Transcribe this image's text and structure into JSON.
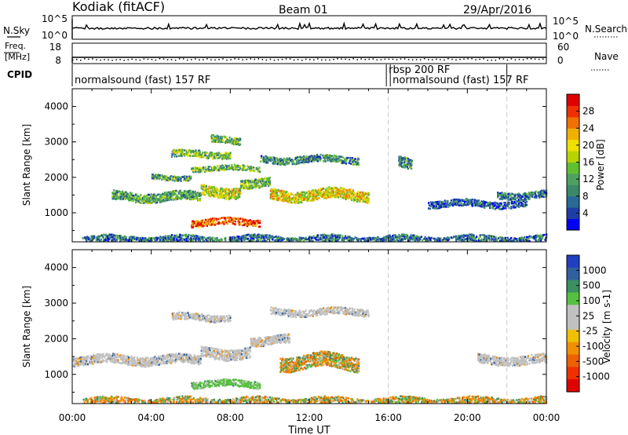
{
  "header": {
    "station": "Kodiak (fitACF)",
    "beam": "Beam 01",
    "date": "29/Apr/2016"
  },
  "strips": {
    "nsky_label": "N.Sky",
    "nsky_ticks": [
      "10^5",
      "10^0"
    ],
    "nsearch_label": "N.Search",
    "nsearch_ticks": [
      "10^5",
      "10^0"
    ],
    "freq_label_1": "Freq.",
    "freq_label_2": "[MHz]",
    "freq_ticks": [
      "18",
      "8"
    ],
    "nave_label": "Nave",
    "nave_ticks": [
      "60",
      "0"
    ],
    "cpid_label": "CPID",
    "cpid_segments": [
      {
        "label": "normalsound (fast) 157 RF",
        "start_hour": 0,
        "end_hour": 15.9
      },
      {
        "label": "rbsp 200 RF",
        "start_hour": 15.9,
        "end_hour": 16.1
      },
      {
        "label": "normalsound (fast) 157 RF",
        "start_hour": 16.1,
        "end_hour": 22
      }
    ]
  },
  "chart_data": [
    {
      "type": "heatmap",
      "title": "",
      "xlabel": "Time UT",
      "ylabel": "Slant Range [km]",
      "x_range_hours": [
        0,
        24
      ],
      "x_ticks": [
        "00:00",
        "04:00",
        "08:00",
        "12:00",
        "16:00",
        "20:00",
        "00:00"
      ],
      "ylim": [
        180,
        4500
      ],
      "y_ticks": [
        1000,
        2000,
        3000,
        4000
      ],
      "dashed_marker_hours": [
        16,
        22
      ],
      "colorbar": {
        "label": "Power [dB]",
        "ticks": [
          "4",
          "8",
          "12",
          "16",
          "20",
          "24",
          "28"
        ],
        "colors": [
          "#0000ff",
          "#1e3ea6",
          "#2a6a96",
          "#3a8a6a",
          "#4fa060",
          "#60c030",
          "#b8d400",
          "#f0e000",
          "#f0b000",
          "#f07000",
          "#f03000",
          "#e00000"
        ]
      },
      "features": [
        {
          "start_hour": 2.0,
          "end_hour": 6.5,
          "range_km": 1500,
          "width_km": 250,
          "level": 0.35
        },
        {
          "start_hour": 6.5,
          "end_hour": 8.5,
          "range_km": 1650,
          "width_km": 300,
          "level": 0.55
        },
        {
          "start_hour": 8.5,
          "end_hour": 10.0,
          "range_km": 1900,
          "width_km": 250,
          "level": 0.4
        },
        {
          "start_hour": 4.0,
          "end_hour": 6.0,
          "range_km": 2050,
          "width_km": 150,
          "level": 0.35
        },
        {
          "start_hour": 6.0,
          "end_hour": 9.5,
          "range_km": 2300,
          "width_km": 150,
          "level": 0.4
        },
        {
          "start_hour": 5.0,
          "end_hour": 8.0,
          "range_km": 2700,
          "width_km": 200,
          "level": 0.45
        },
        {
          "start_hour": 7.0,
          "end_hour": 8.5,
          "range_km": 3100,
          "width_km": 200,
          "level": 0.4
        },
        {
          "start_hour": 9.5,
          "end_hour": 14.5,
          "range_km": 2550,
          "width_km": 200,
          "level": 0.3
        },
        {
          "start_hour": 10.0,
          "end_hour": 15.0,
          "range_km": 1550,
          "width_km": 300,
          "level": 0.6
        },
        {
          "start_hour": 6.0,
          "end_hour": 9.5,
          "range_km": 780,
          "width_km": 200,
          "level": 0.85
        },
        {
          "start_hour": 16.5,
          "end_hour": 17.2,
          "range_km": 2450,
          "width_km": 300,
          "level": 0.3
        },
        {
          "start_hour": 18.0,
          "end_hour": 23.0,
          "range_km": 1300,
          "width_km": 200,
          "level": 0.2
        },
        {
          "start_hour": 21.5,
          "end_hour": 24.0,
          "range_km": 1550,
          "width_km": 200,
          "level": 0.25
        },
        {
          "start_hour": 0.5,
          "end_hour": 24.0,
          "range_km": 300,
          "width_km": 200,
          "level": 0.25
        }
      ]
    },
    {
      "type": "heatmap",
      "title": "",
      "xlabel": "Time UT",
      "ylabel": "Slant Range [km]",
      "x_range_hours": [
        0,
        24
      ],
      "x_ticks": [
        "00:00",
        "04:00",
        "08:00",
        "12:00",
        "16:00",
        "20:00",
        "00:00"
      ],
      "ylim": [
        180,
        4500
      ],
      "y_ticks": [
        1000,
        2000,
        3000,
        4000
      ],
      "dashed_marker_hours": [
        16,
        22
      ],
      "colorbar": {
        "label": "Velocity [m s-1]",
        "ticks": [
          "1000",
          "500",
          "100",
          "25",
          "-25",
          "-100",
          "-500",
          "-1000"
        ],
        "colors": [
          "#2040c0",
          "#3060a0",
          "#3a9060",
          "#58c040",
          "#c0c0c0",
          "#c0c0c0",
          "#f0c000",
          "#f09000",
          "#f06000",
          "#f03000",
          "#e00000"
        ]
      },
      "features": [
        {
          "start_hour": 0.0,
          "end_hour": 6.5,
          "range_km": 1450,
          "width_km": 250,
          "tone": "ground"
        },
        {
          "start_hour": 6.5,
          "end_hour": 9.0,
          "range_km": 1650,
          "width_km": 300,
          "tone": "ground"
        },
        {
          "start_hour": 9.0,
          "end_hour": 11.0,
          "range_km": 2000,
          "width_km": 250,
          "tone": "ground"
        },
        {
          "start_hour": 5.0,
          "end_hour": 8.0,
          "range_km": 2650,
          "width_km": 200,
          "tone": "ground"
        },
        {
          "start_hour": 10.0,
          "end_hour": 15.0,
          "range_km": 2800,
          "width_km": 200,
          "tone": "ground"
        },
        {
          "start_hour": 10.5,
          "end_hour": 14.5,
          "range_km": 1400,
          "width_km": 400,
          "tone": "mixed"
        },
        {
          "start_hour": 6.0,
          "end_hour": 9.5,
          "range_km": 780,
          "width_km": 200,
          "tone": "green"
        },
        {
          "start_hour": 20.5,
          "end_hour": 24.0,
          "range_km": 1450,
          "width_km": 250,
          "tone": "ground"
        },
        {
          "start_hour": 0.5,
          "end_hour": 24.0,
          "range_km": 300,
          "width_km": 200,
          "tone": "mixed"
        }
      ]
    }
  ]
}
